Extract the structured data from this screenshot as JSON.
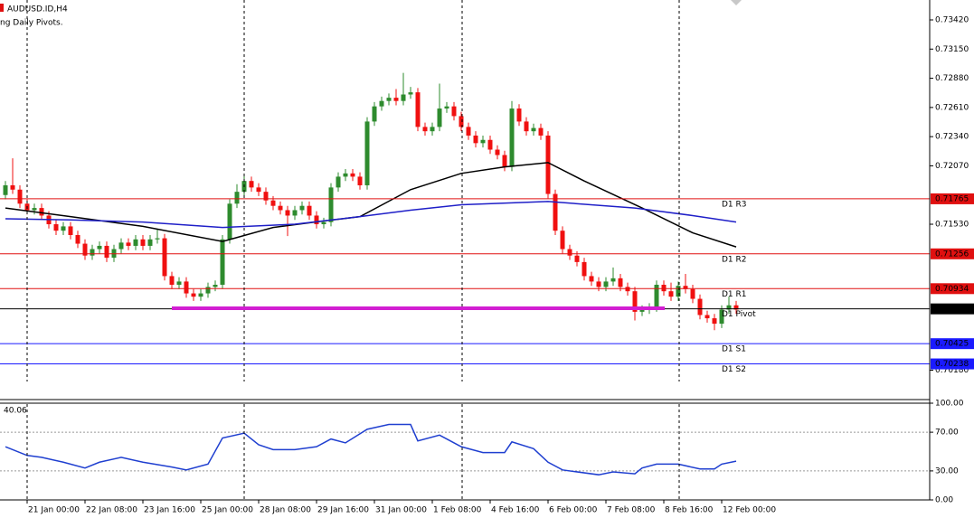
{
  "chart_data": [
    {
      "type": "candlestick",
      "title": "AUDUSD.ID,H4",
      "subtitle": "ng Daily Pivots.",
      "xlim": [
        -0.75,
        127.75
      ],
      "xticks": [
        {
          "value": 3,
          "label": "21 Jan 00:00"
        },
        {
          "value": 11,
          "label": "22 Jan 08:00"
        },
        {
          "value": 19,
          "label": "23 Jan 16:00"
        },
        {
          "value": 27,
          "label": "25 Jan 00:00"
        },
        {
          "value": 35,
          "label": "28 Jan 08:00"
        },
        {
          "value": 43,
          "label": "29 Jan 16:00"
        },
        {
          "value": 51,
          "label": "31 Jan 00:00"
        },
        {
          "value": 59,
          "label": "1 Feb 08:00"
        },
        {
          "value": 67,
          "label": "4 Feb 16:00"
        },
        {
          "value": 75,
          "label": "6 Feb 00:00"
        },
        {
          "value": 83,
          "label": "7 Feb 08:00"
        },
        {
          "value": 91,
          "label": "8 Feb 16:00"
        },
        {
          "value": 99,
          "label": "12 Feb 00:00"
        }
      ],
      "ylim": [
        0.69908,
        0.73604
      ],
      "yticks": [
        {
          "value": 0.7342,
          "label": "0.73420"
        },
        {
          "value": 0.7315,
          "label": "0.73150"
        },
        {
          "value": 0.7288,
          "label": "0.72880"
        },
        {
          "value": 0.7261,
          "label": "0.72610"
        },
        {
          "value": 0.7234,
          "label": "0.72340"
        },
        {
          "value": 0.7207,
          "label": "0.72070"
        },
        {
          "value": 0.7153,
          "label": "0.71530"
        },
        {
          "value": 0.7018,
          "label": "0.70180"
        }
      ],
      "up_color": "#2e8b2e",
      "down_color": "#f01010",
      "open": [
        0.718,
        0.7189,
        0.7185,
        0.7172,
        0.7166,
        0.7168,
        0.7161,
        0.7153,
        0.7147,
        0.7151,
        0.7143,
        0.7135,
        0.7124,
        0.713,
        0.7133,
        0.7122,
        0.713,
        0.7136,
        0.7133,
        0.7139,
        0.7133,
        0.7139,
        0.714,
        0.7105,
        0.7097,
        0.71,
        0.7089,
        0.7086,
        0.7089,
        0.7095,
        0.7097,
        0.7139,
        0.7172,
        0.7183,
        0.7193,
        0.7187,
        0.7183,
        0.7175,
        0.717,
        0.7166,
        0.7161,
        0.7166,
        0.717,
        0.7161,
        0.7153,
        0.7155,
        0.7187,
        0.7197,
        0.72,
        0.7197,
        0.7189,
        0.7248,
        0.7262,
        0.7267,
        0.727,
        0.7267,
        0.7273,
        0.7275,
        0.7243,
        0.7239,
        0.7243,
        0.726,
        0.7262,
        0.7253,
        0.7243,
        0.7235,
        0.7228,
        0.7231,
        0.7222,
        0.7217,
        0.7206,
        0.726,
        0.7248,
        0.7239,
        0.7242,
        0.7235,
        0.7181,
        0.7147,
        0.713,
        0.7124,
        0.7118,
        0.7105,
        0.71,
        0.7095,
        0.71,
        0.7103,
        0.7095,
        0.7091,
        0.7072,
        0.7074,
        0.7076,
        0.7097,
        0.7091,
        0.7086,
        0.7096,
        0.7093,
        0.7084,
        0.7069,
        0.7066,
        0.7061,
        0.7074,
        0.7078
      ],
      "high": [
        0.7193,
        0.7214,
        0.7189,
        0.7176,
        0.7172,
        0.7172,
        0.7165,
        0.7157,
        0.7155,
        0.7155,
        0.7147,
        0.7139,
        0.7134,
        0.7137,
        0.7137,
        0.7134,
        0.714,
        0.714,
        0.7143,
        0.7143,
        0.7143,
        0.7148,
        0.7144,
        0.7109,
        0.7104,
        0.7104,
        0.7093,
        0.7093,
        0.7099,
        0.7101,
        0.7143,
        0.7176,
        0.719,
        0.72,
        0.7197,
        0.7191,
        0.7187,
        0.7179,
        0.7174,
        0.717,
        0.717,
        0.7174,
        0.7174,
        0.7165,
        0.7159,
        0.7191,
        0.7201,
        0.7204,
        0.7204,
        0.7201,
        0.7252,
        0.7266,
        0.7271,
        0.7274,
        0.7278,
        0.7293,
        0.728,
        0.7279,
        0.7247,
        0.7247,
        0.7283,
        0.7266,
        0.7266,
        0.7257,
        0.7247,
        0.7239,
        0.7235,
        0.7235,
        0.7226,
        0.7221,
        0.7267,
        0.7264,
        0.7252,
        0.7246,
        0.7246,
        0.7239,
        0.7185,
        0.7151,
        0.7134,
        0.7128,
        0.7122,
        0.7109,
        0.7104,
        0.7104,
        0.7113,
        0.7107,
        0.7099,
        0.7095,
        0.7078,
        0.708,
        0.7101,
        0.7101,
        0.7099,
        0.71,
        0.7107,
        0.7097,
        0.7088,
        0.7073,
        0.707,
        0.7078,
        0.7086,
        0.7082
      ],
      "low": [
        0.7176,
        0.7181,
        0.7168,
        0.7162,
        0.7162,
        0.7157,
        0.7149,
        0.7143,
        0.7143,
        0.7139,
        0.7131,
        0.712,
        0.712,
        0.7126,
        0.7118,
        0.7118,
        0.7126,
        0.7129,
        0.7129,
        0.7129,
        0.7129,
        0.7135,
        0.7101,
        0.7093,
        0.7093,
        0.7085,
        0.7082,
        0.7082,
        0.7085,
        0.7091,
        0.7093,
        0.7135,
        0.7168,
        0.7179,
        0.7183,
        0.7179,
        0.7171,
        0.7166,
        0.7162,
        0.7142,
        0.7157,
        0.7162,
        0.7157,
        0.7149,
        0.7149,
        0.7151,
        0.7183,
        0.7193,
        0.7193,
        0.7185,
        0.7185,
        0.7244,
        0.7258,
        0.7263,
        0.7263,
        0.7263,
        0.7269,
        0.7239,
        0.7235,
        0.7235,
        0.7239,
        0.7256,
        0.7249,
        0.7239,
        0.7231,
        0.7224,
        0.7224,
        0.7218,
        0.7213,
        0.7202,
        0.7202,
        0.7244,
        0.7235,
        0.7235,
        0.7231,
        0.7177,
        0.7143,
        0.7126,
        0.712,
        0.7114,
        0.7101,
        0.7096,
        0.7091,
        0.7091,
        0.7096,
        0.7091,
        0.7087,
        0.7064,
        0.7068,
        0.707,
        0.7072,
        0.7087,
        0.7082,
        0.7082,
        0.7089,
        0.708,
        0.7065,
        0.7062,
        0.7055,
        0.7057,
        0.707,
        0.707
      ],
      "close": [
        0.7189,
        0.7185,
        0.7172,
        0.7166,
        0.7168,
        0.7161,
        0.7153,
        0.7147,
        0.7151,
        0.7143,
        0.7135,
        0.7124,
        0.713,
        0.7133,
        0.7122,
        0.713,
        0.7136,
        0.7133,
        0.7139,
        0.7133,
        0.7139,
        0.714,
        0.7105,
        0.7097,
        0.71,
        0.7089,
        0.7086,
        0.7089,
        0.7095,
        0.7097,
        0.7139,
        0.7172,
        0.7183,
        0.7193,
        0.7187,
        0.7183,
        0.7175,
        0.717,
        0.7166,
        0.7161,
        0.7166,
        0.717,
        0.7161,
        0.7153,
        0.7155,
        0.7187,
        0.7197,
        0.72,
        0.7197,
        0.7189,
        0.7248,
        0.7262,
        0.7267,
        0.727,
        0.7267,
        0.7273,
        0.7275,
        0.7243,
        0.7239,
        0.7243,
        0.726,
        0.7262,
        0.7253,
        0.7243,
        0.7235,
        0.7228,
        0.7231,
        0.7222,
        0.7217,
        0.7206,
        0.726,
        0.7248,
        0.7239,
        0.7242,
        0.7235,
        0.7181,
        0.7147,
        0.713,
        0.7124,
        0.7118,
        0.7105,
        0.71,
        0.7095,
        0.71,
        0.7103,
        0.7095,
        0.7091,
        0.7072,
        0.7074,
        0.7076,
        0.7097,
        0.7091,
        0.7086,
        0.7096,
        0.7093,
        0.7084,
        0.7069,
        0.7066,
        0.7061,
        0.7074,
        0.7078,
        0.7074
      ],
      "lines": [
        {
          "color": "#000000",
          "x": [
            0,
            9,
            19,
            30,
            37,
            44,
            49,
            56,
            63,
            69,
            75,
            80,
            88,
            95,
            101
          ],
          "values": [
            0.7168,
            0.716,
            0.7151,
            0.7137,
            0.715,
            0.7156,
            0.716,
            0.7185,
            0.72,
            0.7206,
            0.721,
            0.7193,
            0.7168,
            0.7145,
            0.7132
          ]
        },
        {
          "color": "#1f1fc8",
          "x": [
            0,
            9,
            19,
            30,
            40,
            49,
            56,
            63,
            75,
            87,
            95,
            101
          ],
          "values": [
            0.7158,
            0.7157,
            0.7155,
            0.715,
            0.7153,
            0.716,
            0.7166,
            0.7171,
            0.7174,
            0.7168,
            0.7161,
            0.7155
          ]
        }
      ],
      "levels": [
        {
          "name": "D1 R3",
          "value": 0.71765,
          "color": "#e01010"
        },
        {
          "name": "D1 R2",
          "value": 0.71256,
          "color": "#e01010"
        },
        {
          "name": "D1 R1",
          "value": 0.70934,
          "color": "#e01010"
        },
        {
          "name": "D1 Pivot",
          "value": 0.70747,
          "color": "#000000"
        },
        {
          "name": "D1 S1",
          "value": 0.70425,
          "color": "#1a1aff"
        },
        {
          "name": "D1 S2",
          "value": 0.70238,
          "color": "#1a1aff"
        }
      ]
    },
    {
      "type": "line",
      "title": "40.06",
      "color": "#1f3fd0",
      "xlim": [
        -0.75,
        127.75
      ],
      "ylim": [
        0,
        100
      ],
      "yticks": [
        {
          "value": 100,
          "label": "100.00"
        },
        {
          "value": 70,
          "label": "70.00"
        },
        {
          "value": 30,
          "label": "30.00"
        },
        {
          "value": 0,
          "label": "0.00"
        }
      ],
      "x": [
        0,
        3,
        5,
        8,
        11,
        13,
        16,
        19,
        23,
        25,
        28,
        30,
        33,
        35,
        37,
        40,
        43,
        45,
        47,
        50,
        53,
        56,
        57,
        60,
        63,
        66,
        69,
        70,
        73,
        75,
        77,
        82,
        84,
        87,
        88,
        90,
        93,
        96,
        98,
        99,
        101
      ],
      "values": [
        55,
        46,
        44,
        39,
        33,
        39,
        44,
        39,
        34,
        31,
        37,
        64,
        69,
        57,
        52,
        52,
        55,
        63,
        59,
        73,
        78,
        78,
        61,
        67,
        55,
        49,
        49,
        60,
        53,
        39,
        31,
        26,
        29,
        27,
        33,
        37,
        37,
        32,
        32,
        37,
        40.06
      ]
    }
  ]
}
